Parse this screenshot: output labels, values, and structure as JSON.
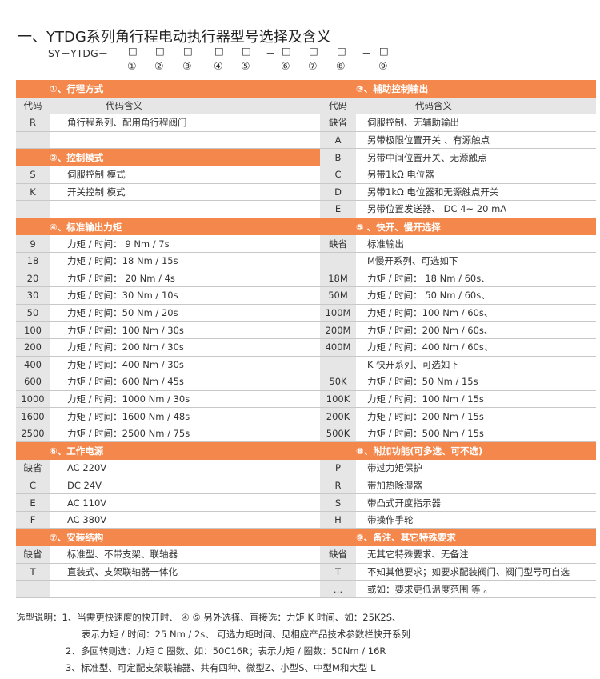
{
  "title": "一、YTDG系列角行程电动执行器型号选择及含义",
  "model": {
    "prefix": "SY－YTDG－",
    "box": "□",
    "dash": "－",
    "numbers": [
      "①",
      "②",
      "③",
      "④",
      "⑤",
      "⑥",
      "⑦",
      "⑧",
      "⑨"
    ]
  },
  "colors": {
    "header": "#f4874b",
    "code_bg": "#e6e6e6"
  },
  "left": [
    {
      "type": "head",
      "text": "①、行程方式"
    },
    {
      "type": "colhead",
      "code": "代码",
      "text": "代码含义"
    },
    {
      "code": "R",
      "text": "角行程系列、配用角行程阀门"
    },
    {
      "code": "",
      "text": ""
    },
    {
      "type": "head",
      "text": "②、控制模式"
    },
    {
      "code": "S",
      "text": "伺服控制  模式"
    },
    {
      "code": "K",
      "text": "开关控制  模式"
    },
    {
      "code": "",
      "text": ""
    },
    {
      "type": "head",
      "text": "④、标准输出力矩"
    },
    {
      "code": "9",
      "text": "力矩 / 时间：  9 Nm / 7s"
    },
    {
      "code": "18",
      "text": "力矩 / 时间：18 Nm / 15s"
    },
    {
      "code": "20",
      "text": "力矩 / 时间： 20 Nm / 4s"
    },
    {
      "code": "30",
      "text": "力矩 / 时间：30 Nm / 10s"
    },
    {
      "code": "50",
      "text": "力矩 / 时间：50 Nm / 20s"
    },
    {
      "code": "100",
      "text": "力矩 / 时间：100 Nm / 30s"
    },
    {
      "code": "200",
      "text": "力矩 / 时间：200 Nm / 30s"
    },
    {
      "code": "400",
      "text": "力矩 / 时间：400 Nm / 30s"
    },
    {
      "code": "600",
      "text": "力矩 / 时间：600 Nm / 45s"
    },
    {
      "code": "1000",
      "text": "力矩 / 时间：1000 Nm / 30s"
    },
    {
      "code": "1600",
      "text": "力矩 / 时间：1600 Nm / 48s"
    },
    {
      "code": "2500",
      "text": "力矩 / 时间：2500 Nm / 75s"
    },
    {
      "type": "head",
      "text": "⑥、工作电源"
    },
    {
      "code": "缺省",
      "text": "AC  220V"
    },
    {
      "code": "C",
      "text": "DC  24V"
    },
    {
      "code": "E",
      "text": "AC 110V"
    },
    {
      "code": "F",
      "text": "AC 380V"
    },
    {
      "type": "head",
      "text": "⑦、安装结构"
    },
    {
      "code": "缺省",
      "text": "标准型、不带支架、联轴器"
    },
    {
      "code": "T",
      "text": "直装式、支架联轴器一体化"
    },
    {
      "code": "",
      "text": ""
    }
  ],
  "right": [
    {
      "type": "head",
      "text": "③、辅助控制输出"
    },
    {
      "type": "colhead",
      "code": "代码",
      "text": "代码含义"
    },
    {
      "code": "缺省",
      "text": "伺服控制、无辅助输出"
    },
    {
      "code": "A",
      "text": "另带极限位置开关 、有源触点"
    },
    {
      "code": "B",
      "text": "另带中间位置开关、无源触点"
    },
    {
      "code": "C",
      "text": "另带1kΩ 电位器"
    },
    {
      "code": "D",
      "text": "另带1kΩ 电位器和无源触点开关"
    },
    {
      "code": "E",
      "text": "另带位置发送器、 DC 4~ 20 mA"
    },
    {
      "type": "head",
      "text": "⑤ 、快开、慢开选择"
    },
    {
      "code": "缺省",
      "text": "标准输出"
    },
    {
      "code": "",
      "text": "M慢开系列、可选如下"
    },
    {
      "code": "18M",
      "text": "力矩 / 时间：  18 Nm / 60s、"
    },
    {
      "code": "50M",
      "text": "力矩 / 时间：  50 Nm / 60s、"
    },
    {
      "code": "100M",
      "text": "力矩 / 时间：100 Nm / 60s、"
    },
    {
      "code": "200M",
      "text": "力矩 / 时间：200 Nm / 60s、"
    },
    {
      "code": "400M",
      "text": "力矩 / 时间：400 Nm / 60s、"
    },
    {
      "code": "",
      "text": "K 快开系列、可选如下"
    },
    {
      "code": "50K",
      "text": "力矩 / 时间：50 Nm / 15s"
    },
    {
      "code": "100K",
      "text": "力矩 / 时间：100 Nm / 15s"
    },
    {
      "code": "200K",
      "text": "力矩 / 时间：200 Nm / 15s"
    },
    {
      "code": "500K",
      "text": "力矩 / 时间：500 Nm / 15s"
    },
    {
      "type": "head",
      "text": "⑧、附加功能(可多选、可不选)"
    },
    {
      "code": "P",
      "text": "带过力矩保护"
    },
    {
      "code": "R",
      "text": "带加热除湿器"
    },
    {
      "code": "S",
      "text": "带凸式开度指示器"
    },
    {
      "code": "H",
      "text": "带操作手轮"
    },
    {
      "type": "head",
      "text": "⑨、备注、其它特殊要求"
    },
    {
      "code": "缺省",
      "text": "无其它特殊要求、无备注"
    },
    {
      "code": "T",
      "text": "不知其他要求；如要求配装阀门、阀门型号可自选"
    },
    {
      "code": "…",
      "text": "或如：要求更低温度范围 等 。"
    }
  ],
  "notes": [
    "选型说明：1、当需更快速度的快开时、 ④ ⑤ 另外选择、直接选：力矩  K 时间、如：25K2S、",
    "表示力矩 / 时间：25 Nm / 2s、 可选力矩时间、见相应产品技术参数栏快开系列",
    "2、多回转则选：力矩 C 圈数、如：50C16R；表示力矩 / 圈数：50Nm / 16R",
    "3、标准型、可定配支架联轴器、共有四种、微型Z、小型S、中型M和大型 L"
  ]
}
